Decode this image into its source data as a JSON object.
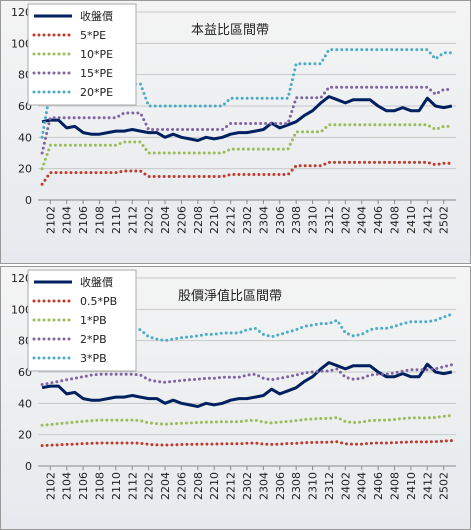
{
  "chart_data": [
    {
      "type": "line",
      "title": "本益比區間帶",
      "categories": [
        null,
        "2102",
        null,
        "2104",
        null,
        "2106",
        null,
        "2108",
        null,
        "2110",
        null,
        "2112",
        null,
        "2202",
        null,
        "2204",
        null,
        "2206",
        null,
        "2208",
        null,
        "2210",
        null,
        "2212",
        null,
        "2302",
        null,
        "2304",
        null,
        "2306",
        null,
        "2308",
        null,
        "2310",
        null,
        "2312",
        null,
        "2402",
        null,
        "2404",
        null,
        "2406",
        null,
        "2408",
        null,
        "2410",
        null,
        "2412",
        null,
        "2502",
        null
      ],
      "ylim": [
        0,
        120
      ],
      "yticks": [
        0,
        20,
        40,
        60,
        80,
        100,
        120
      ],
      "grid": true,
      "legend": "upper left",
      "series": [
        {
          "name": "收盤價",
          "color": "#002060",
          "linestyle": "solid",
          "values": [
            50,
            51,
            51,
            46,
            47,
            43,
            42,
            42,
            43,
            44,
            44,
            45,
            44,
            43,
            43,
            40,
            42,
            40,
            39,
            38,
            40,
            39,
            40,
            42,
            43,
            43,
            44,
            45,
            49,
            46,
            48,
            50,
            54,
            57,
            62,
            66,
            64,
            62,
            64,
            64,
            64,
            60,
            57,
            57,
            59,
            57,
            57,
            65,
            60,
            59,
            60
          ]
        },
        {
          "name": "5*PE",
          "color": "#c0392b",
          "linestyle": "dotted",
          "values": [
            10,
            17.5,
            17.5,
            17.5,
            17.5,
            17.5,
            17.5,
            17.5,
            17.5,
            17.5,
            18.5,
            18.5,
            18.5,
            15,
            15,
            15,
            15,
            15,
            15,
            15,
            15,
            15,
            15,
            16.3,
            16.3,
            16.3,
            16.3,
            16.3,
            16.3,
            16.3,
            16.3,
            21.8,
            21.8,
            21.8,
            21.8,
            24,
            24,
            24,
            24,
            24,
            24,
            24,
            24,
            24,
            24,
            24,
            24,
            24,
            22.5,
            23.5,
            23.5
          ]
        },
        {
          "name": "10*PE",
          "color": "#9bbb59",
          "linestyle": "dotted",
          "values": [
            20,
            35,
            35,
            35,
            35,
            35,
            35,
            35,
            35,
            35,
            37,
            37,
            37,
            30,
            30,
            30,
            30,
            30,
            30,
            30,
            30,
            30,
            30,
            32.5,
            32.5,
            32.5,
            32.5,
            32.5,
            32.5,
            32.5,
            32.5,
            43.5,
            43.5,
            43.5,
            43.5,
            48,
            48,
            48,
            48,
            48,
            48,
            48,
            48,
            48,
            48,
            48,
            48,
            48,
            45,
            47,
            47
          ]
        },
        {
          "name": "15*PE",
          "color": "#8064a2",
          "linestyle": "dotted",
          "values": [
            30,
            52.5,
            52.5,
            52.5,
            52.5,
            52.5,
            52.5,
            52.5,
            52.5,
            52.5,
            55.5,
            55.5,
            55.5,
            45,
            45,
            45,
            45,
            45,
            45,
            45,
            45,
            45,
            45,
            48.8,
            48.8,
            48.8,
            48.8,
            48.8,
            48.8,
            48.8,
            48.8,
            65.3,
            65.3,
            65.3,
            65.3,
            72,
            72,
            72,
            72,
            72,
            72,
            72,
            72,
            72,
            72,
            72,
            72,
            72,
            67.5,
            70.5,
            70.5
          ]
        },
        {
          "name": "20*PE",
          "color": "#4bacc6",
          "linestyle": "dotted",
          "values": [
            40,
            70,
            70,
            70,
            70,
            70,
            70,
            70,
            70,
            70,
            74,
            74,
            74,
            60,
            60,
            60,
            60,
            60,
            60,
            60,
            60,
            60,
            60,
            65,
            65,
            65,
            65,
            65,
            65,
            65,
            65,
            87,
            87,
            87,
            87,
            96,
            96,
            96,
            96,
            96,
            96,
            96,
            96,
            96,
            96,
            96,
            96,
            96,
            90,
            94,
            94
          ]
        }
      ]
    },
    {
      "type": "line",
      "title": "股價淨值比區間帶",
      "categories": [
        null,
        "2102",
        null,
        "2104",
        null,
        "2106",
        null,
        "2108",
        null,
        "2110",
        null,
        "2112",
        null,
        "2202",
        null,
        "2204",
        null,
        "2206",
        null,
        "2208",
        null,
        "2210",
        null,
        "2212",
        null,
        "2302",
        null,
        "2304",
        null,
        "2306",
        null,
        "2308",
        null,
        "2310",
        null,
        "2312",
        null,
        "2402",
        null,
        "2404",
        null,
        "2406",
        null,
        "2408",
        null,
        "2410",
        null,
        "2412",
        null,
        "2502",
        null
      ],
      "ylim": [
        0,
        120
      ],
      "yticks": [
        0,
        20,
        40,
        60,
        80,
        100,
        120
      ],
      "grid": true,
      "legend": "upper left",
      "series": [
        {
          "name": "收盤價",
          "color": "#002060",
          "linestyle": "solid",
          "values": [
            50,
            51,
            51,
            46,
            47,
            43,
            42,
            42,
            43,
            44,
            44,
            45,
            44,
            43,
            43,
            40,
            42,
            40,
            39,
            38,
            40,
            39,
            40,
            42,
            43,
            43,
            44,
            45,
            49,
            46,
            48,
            50,
            54,
            57,
            62,
            66,
            64,
            62,
            64,
            64,
            64,
            60,
            57,
            57,
            59,
            57,
            57,
            65,
            60,
            59,
            60
          ]
        },
        {
          "name": "0.5*PB",
          "color": "#c0392b",
          "linestyle": "dotted",
          "values": [
            13,
            13.3,
            13.5,
            13.8,
            14,
            14.3,
            14.5,
            14.7,
            14.7,
            14.7,
            14.7,
            14.7,
            14.5,
            13.8,
            13.5,
            13.4,
            13.5,
            13.7,
            13.8,
            13.9,
            14,
            14,
            14.2,
            14.2,
            14.2,
            14.5,
            14.7,
            14,
            13.8,
            14,
            14.3,
            14.5,
            14.9,
            15,
            15.2,
            15.2,
            15.5,
            14.2,
            13.9,
            14,
            14.5,
            14.7,
            14.7,
            14.9,
            15.2,
            15.4,
            15.4,
            15.4,
            15.5,
            15.9,
            16.2
          ]
        },
        {
          "name": "1*PB",
          "color": "#9bbb59",
          "linestyle": "dotted",
          "values": [
            26,
            26.5,
            27,
            27.5,
            28,
            28.5,
            29,
            29.3,
            29.3,
            29.3,
            29.3,
            29.3,
            29,
            27.5,
            27,
            26.7,
            27,
            27.3,
            27.5,
            27.7,
            28,
            28,
            28.3,
            28.3,
            28.3,
            29,
            29.3,
            28,
            27.5,
            28,
            28.5,
            29,
            29.7,
            30,
            30.3,
            30.3,
            31,
            28.3,
            27.7,
            28,
            29,
            29.3,
            29.3,
            29.7,
            30.3,
            30.7,
            30.7,
            30.7,
            31,
            31.7,
            32.3
          ]
        },
        {
          "name": "2*PB",
          "color": "#8064a2",
          "linestyle": "dotted",
          "values": [
            52,
            53,
            54,
            55,
            56,
            57,
            58,
            58.6,
            58.6,
            58.6,
            58.6,
            58.6,
            58,
            55,
            54,
            53.4,
            54,
            54.6,
            55,
            55.4,
            56,
            56,
            56.6,
            56.6,
            56.6,
            58,
            58.6,
            56,
            55,
            56,
            57,
            58,
            59.4,
            60,
            60.6,
            60.6,
            62,
            56.6,
            55.4,
            56,
            58,
            58.6,
            58.6,
            59.4,
            60.6,
            61.4,
            61.4,
            61.4,
            62,
            63.4,
            64.6
          ]
        },
        {
          "name": "3*PB",
          "color": "#4bacc6",
          "linestyle": "dotted",
          "values": [
            78,
            79.5,
            81,
            82.5,
            84,
            85.5,
            87,
            87.9,
            87.9,
            87.9,
            87.9,
            87.9,
            87,
            82.5,
            81,
            80.1,
            81,
            81.9,
            82.5,
            83.1,
            84,
            84,
            84.9,
            84.9,
            84.9,
            87,
            87.9,
            84,
            82.5,
            84,
            85.5,
            87,
            89.1,
            90,
            90.9,
            90.9,
            93,
            84.9,
            83.1,
            84,
            87,
            87.9,
            87.9,
            89.1,
            90.9,
            92.1,
            92.1,
            92.1,
            93,
            95.1,
            96.9
          ]
        }
      ]
    }
  ]
}
